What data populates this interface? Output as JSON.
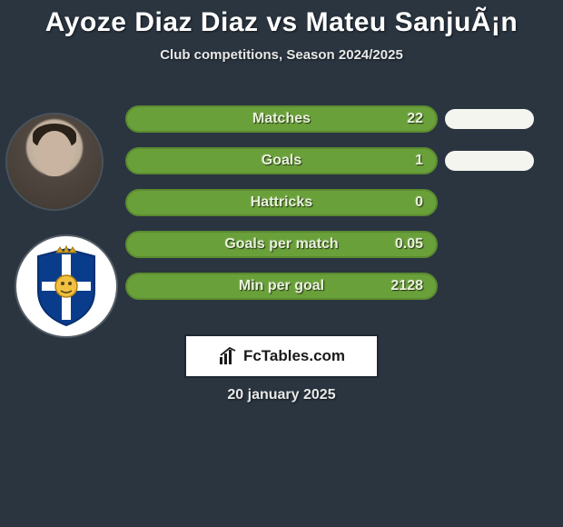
{
  "title": "Ayoze Diaz Diaz vs Mateu SanjuÃ¡n",
  "subtitle": "Club competitions, Season 2024/2025",
  "date": "20 january 2025",
  "brand": "FcTables.com",
  "colors": {
    "background": "#2a3540",
    "title_color": "#ffffff",
    "subtitle_color": "#e8e8e8",
    "pill_green_bg": "#6aa03a",
    "pill_green_border": "#5a8a2f",
    "pill_green_text": "#e8f2da",
    "blip_white": "#f5f5f0",
    "brand_box_bg": "#ffffff",
    "brand_text": "#1a1a1a"
  },
  "stats": [
    {
      "label": "Matches",
      "value": "22",
      "show_blip": true
    },
    {
      "label": "Goals",
      "value": "1",
      "show_blip": true
    },
    {
      "label": "Hattricks",
      "value": "0",
      "show_blip": false
    },
    {
      "label": "Goals per match",
      "value": "0.05",
      "show_blip": false
    },
    {
      "label": "Min per goal",
      "value": "2128",
      "show_blip": false
    }
  ],
  "club_badge": {
    "outer": "#0a3c8c",
    "cross_v": "#ffffff",
    "cross_h": "#ffffff",
    "quad_tl": "#0a3c8c",
    "quad_br": "#0a3c8c",
    "center": "#f0c040",
    "crown": "#d4a020"
  }
}
